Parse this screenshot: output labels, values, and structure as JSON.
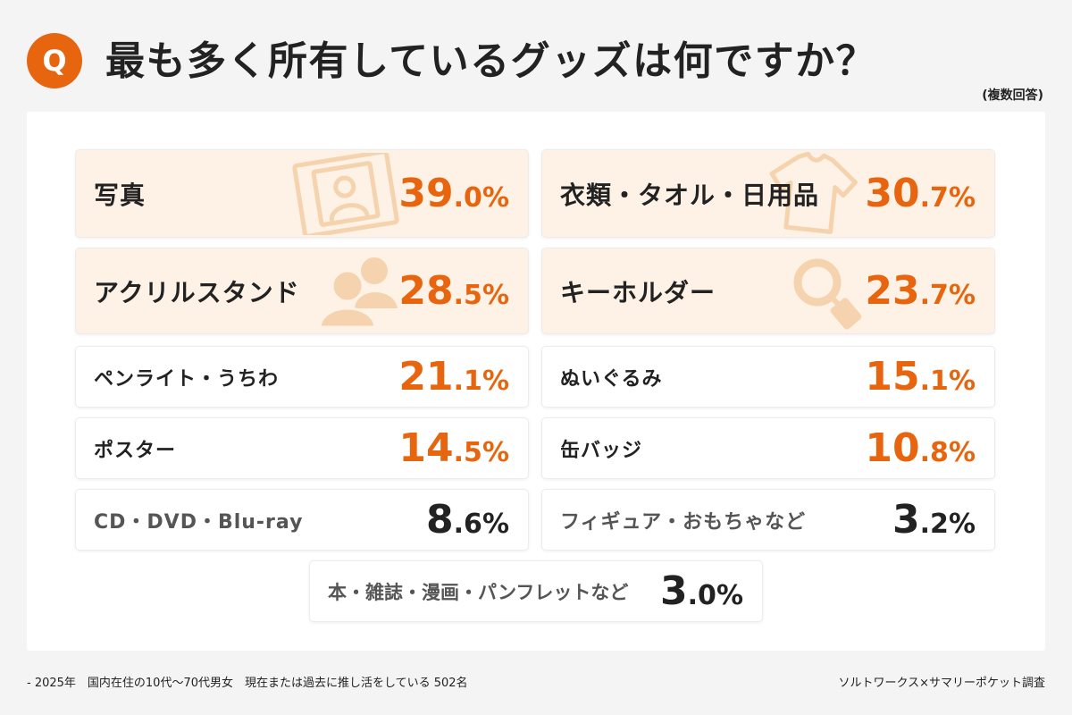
{
  "header": {
    "q_badge": "Q"
  },
  "chart_data": {
    "type": "table",
    "title": "最も多く所有しているグッズは何ですか？",
    "note": "(複数回答)",
    "unit": "%",
    "categories": [
      "写真",
      "衣類・タオル・日用品",
      "アクリルスタンド",
      "キーホルダー",
      "ペンライト・うちわ",
      "ぬいぐるみ",
      "ポスター",
      "缶バッジ",
      "CD・DVD・Blu-ray",
      "フィギュア・おもちゃなど",
      "本・雑誌・漫画・パンフレットなど"
    ],
    "values": [
      39.0,
      30.7,
      28.5,
      23.7,
      21.1,
      15.1,
      14.5,
      10.8,
      8.6,
      3.2,
      3.0
    ]
  },
  "icons": [
    "photo-icon",
    "t-shirt-icon",
    "people-icon",
    "keychain-icon"
  ],
  "colors": {
    "accent": "#e8650f",
    "highlight_bg": "#fdf2e5",
    "text": "#222222",
    "muted_text": "#555555",
    "page_bg": "#f4f4f4",
    "panel_bg": "#ffffff"
  },
  "footer": {
    "survey_info": "- 2025年　国内在住の10代〜70代男女　現在または過去に推し活をしている 502名",
    "source": "ソルトワークス×サマリーポケット調査"
  }
}
